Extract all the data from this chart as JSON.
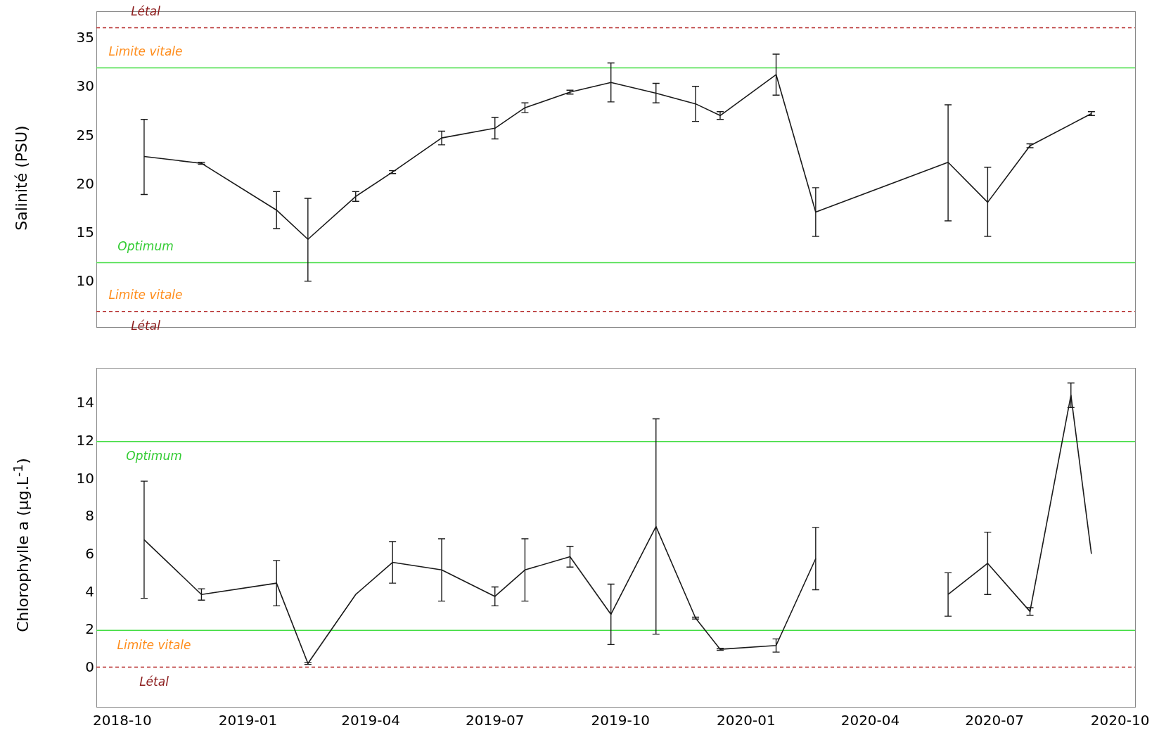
{
  "chart_data": [
    {
      "type": "line",
      "ylabel": "Salinité (PSU)",
      "xlim": [
        "2018-09-12",
        "2020-10-12"
      ],
      "xticks": [
        {
          "value": "2018-10",
          "label": null
        },
        {
          "value": "2019-01",
          "label": null
        },
        {
          "value": "2019-04",
          "label": null
        },
        {
          "value": "2019-07",
          "label": null
        },
        {
          "value": "2019-10",
          "label": null
        },
        {
          "value": "2020-01",
          "label": null
        },
        {
          "value": "2020-04",
          "label": null
        },
        {
          "value": "2020-07",
          "label": null
        },
        {
          "value": "2020-10",
          "label": null
        }
      ],
      "ylim": [
        5.4,
        37.8
      ],
      "yticks": [
        10,
        15,
        20,
        25,
        30,
        35
      ],
      "tick_labels": "y",
      "grid": false,
      "legend": false,
      "marker": "none",
      "line_style": "solid",
      "series": [
        {
          "color": "#1a1a1a",
          "x": [
            "2018-10-17",
            "2018-11-28",
            "2019-01-22",
            "2019-02-14",
            "2019-03-21",
            "2019-04-17",
            "2019-05-23",
            "2019-07-01",
            "2019-07-23",
            "2019-08-25",
            "2019-09-24",
            "2019-10-27",
            "2019-11-25",
            "2019-12-13",
            "2020-01-23",
            "2020-02-21",
            "2020-05-28",
            "2020-06-26",
            "2020-07-27",
            "2020-09-10"
          ],
          "values": [
            22.9,
            22.2,
            17.4,
            14.4,
            18.8,
            21.3,
            24.8,
            25.8,
            27.9,
            29.5,
            30.5,
            29.4,
            28.3,
            27.1,
            31.3,
            17.2,
            22.3,
            18.2,
            24.0,
            27.3
          ],
          "errors": [
            [
              19.0,
              26.7
            ],
            0.1,
            [
              15.5,
              19.3
            ],
            [
              10.1,
              18.6
            ],
            0.5,
            0.15,
            0.7,
            1.1,
            0.5,
            0.2,
            2,
            1,
            1.8,
            0.4,
            2.1,
            2.5,
            [
              16.3,
              28.2
            ],
            [
              14.7,
              21.8
            ],
            0.2,
            0.2
          ]
        }
      ],
      "ref_lines": [
        {
          "axis": "y",
          "value": 36.1,
          "color": "#b22222",
          "line_style": "dashed"
        },
        {
          "axis": "y",
          "value": 32,
          "color": "#44dd44",
          "line_style": "solid"
        },
        {
          "axis": "y",
          "value": 12,
          "color": "#44dd44",
          "line_style": "solid"
        },
        {
          "axis": "y",
          "value": 7,
          "color": "#b22222",
          "line_style": "dashed"
        }
      ],
      "annotations": [
        "Létal",
        "Limite vitale",
        "Optimum",
        "Limite vitale",
        "Létal"
      ]
    },
    {
      "type": "line",
      "ylabel": "Chlorophylle a (µg.L$^{-1}$)",
      "xlim": [
        "2018-09-12",
        "2020-10-12"
      ],
      "xticks": [
        {
          "value": "2018-10",
          "label": "2018-10"
        },
        {
          "value": "2019-01",
          "label": "2019-01"
        },
        {
          "value": "2019-04",
          "label": "2019-04"
        },
        {
          "value": "2019-07",
          "label": "2019-07"
        },
        {
          "value": "2019-10",
          "label": "2019-10"
        },
        {
          "value": "2020-01",
          "label": "2020-01"
        },
        {
          "value": "2020-04",
          "label": "2020-04"
        },
        {
          "value": "2020-07",
          "label": "2020-07"
        },
        {
          "value": "2020-10",
          "label": "2020-10"
        }
      ],
      "ylim": [
        -2.05,
        15.9
      ],
      "yticks": [
        0,
        2,
        4,
        6,
        8,
        10,
        12,
        14
      ],
      "grid": false,
      "legend": false,
      "marker": "none",
      "line_style": "solid",
      "series": [
        {
          "color": "#1a1a1a",
          "x": [
            "2018-10-17",
            "2018-11-28",
            "2019-01-22",
            "2019-02-14",
            "2019-03-21",
            "2019-04-17",
            "2019-05-23",
            "2019-07-01",
            "2019-07-23",
            "2019-08-25",
            "2019-09-24",
            "2019-10-27",
            "2019-11-25",
            "2019-12-13",
            "2020-01-23",
            "2020-02-21",
            "2020-04-10",
            "2020-05-28",
            "2020-06-26",
            "2020-07-27",
            "2020-08-26",
            "2020-09-10"
          ],
          "values": [
            6.8,
            3.9,
            4.5,
            0.25,
            3.9,
            5.6,
            5.2,
            3.8,
            5.2,
            5.9,
            2.85,
            7.5,
            2.65,
            1.0,
            1.2,
            5.8,
            null,
            3.9,
            5.55,
            3.0,
            14.45,
            6.05
          ],
          "errors": [
            [
              3.7,
              9.9
            ],
            0.3,
            1.2,
            0.05,
            null,
            1.1,
            1.65,
            0.5,
            1.65,
            0.55,
            1.6,
            [
              1.8,
              13.2
            ],
            0.05,
            0.05,
            0.35,
            1.65,
            null,
            1.15,
            1.65,
            0.2,
            0.65,
            null
          ]
        }
      ],
      "ref_lines": [
        {
          "axis": "y",
          "value": 12,
          "color": "#44dd44",
          "line_style": "solid"
        },
        {
          "axis": "y",
          "value": 2,
          "color": "#44dd44",
          "line_style": "solid"
        },
        {
          "axis": "y",
          "value": 0.05,
          "color": "#b22222",
          "line_style": "dashed"
        }
      ],
      "annotations": [
        "Optimum",
        "Limite vitale",
        "Létal"
      ]
    }
  ]
}
